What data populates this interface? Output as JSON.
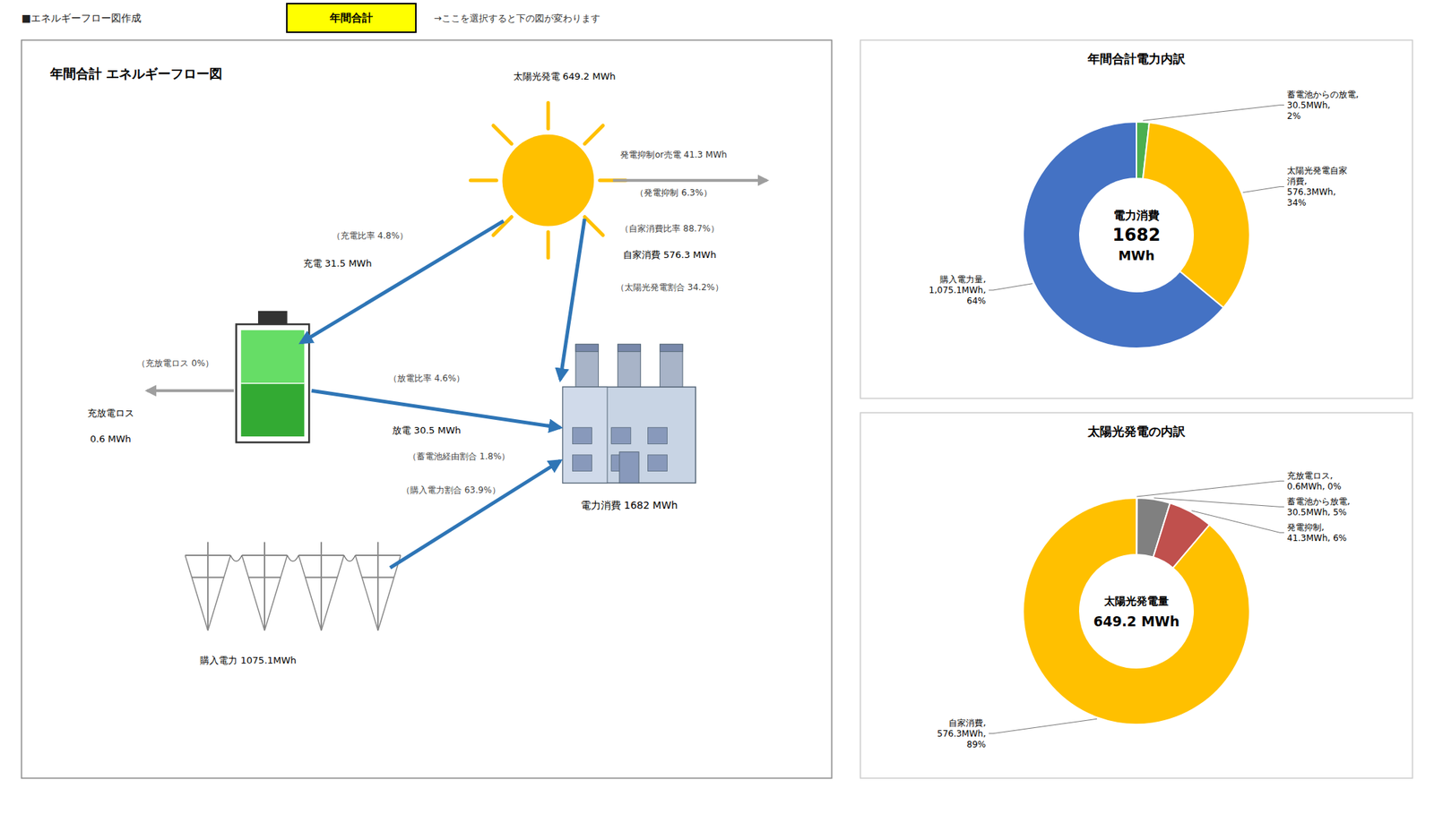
{
  "chart_data": [
    {
      "type": "banner",
      "title": "■エネルギーフロー図作成",
      "annotations": [
        "年間合計",
        "→ここを選択すると下の図が変わります"
      ]
    },
    {
      "type": "flow",
      "title": "年間合計  エネルギーフロー図",
      "annotations": [
        "太陽光発電 649.2 MWh",
        "発電抑制or売電 41.3 MWh",
        "（発電抑制 6.3%）",
        "（充電比率 4.8%）",
        "充電 31.5 MWh",
        "（放電比率 4.6%）",
        "放電 30.5 MWh",
        "（蓄電池経由割合 1.8%）",
        "（自家消費比率 88.7%）",
        "自家消費 576.3 MWh",
        "（太陽光発電割合 34.2%）",
        "（充放電ロス 0%）",
        "充放電ロス",
        "0.6 MWh",
        "購入電力 1075.1MWh",
        "（購入電力割合 63.9%）",
        "電力消費 1682 MWh"
      ]
    },
    {
      "type": "pie",
      "title": "年間合計電力内訳",
      "categories": [
        "蓄電池からの放電,\n30.5MWh,\n2%",
        "太陽光発電自家\n消費,\n576.3MWh,\n34%",
        "購入電力量,\n1,075.1MWh,\n64%"
      ],
      "values": [
        30.5,
        576.3,
        1075.1
      ],
      "colors": [
        "#4CAF50",
        "#ffc000",
        "#4472c4"
      ],
      "annotations": [
        "電力消費",
        "1682",
        "MWh"
      ]
    },
    {
      "type": "pie",
      "title": "太陽光発電の内訳",
      "categories": [
        "充放電ロス,\n0.6MWh, 0%",
        "蓄電池から放電,\n30.5MWh, 5%",
        "発電抑制,\n41.3MWh, 6%",
        "自家消費,\n576.3MWh,\n89%"
      ],
      "values": [
        0.6,
        30.5,
        41.3,
        576.3
      ],
      "colors": [
        "#4CAF50",
        "#808080",
        "#c0504d",
        "#ffc000"
      ],
      "annotations": [
        "太陽光発電量",
        "649.2 MWh"
      ]
    }
  ]
}
